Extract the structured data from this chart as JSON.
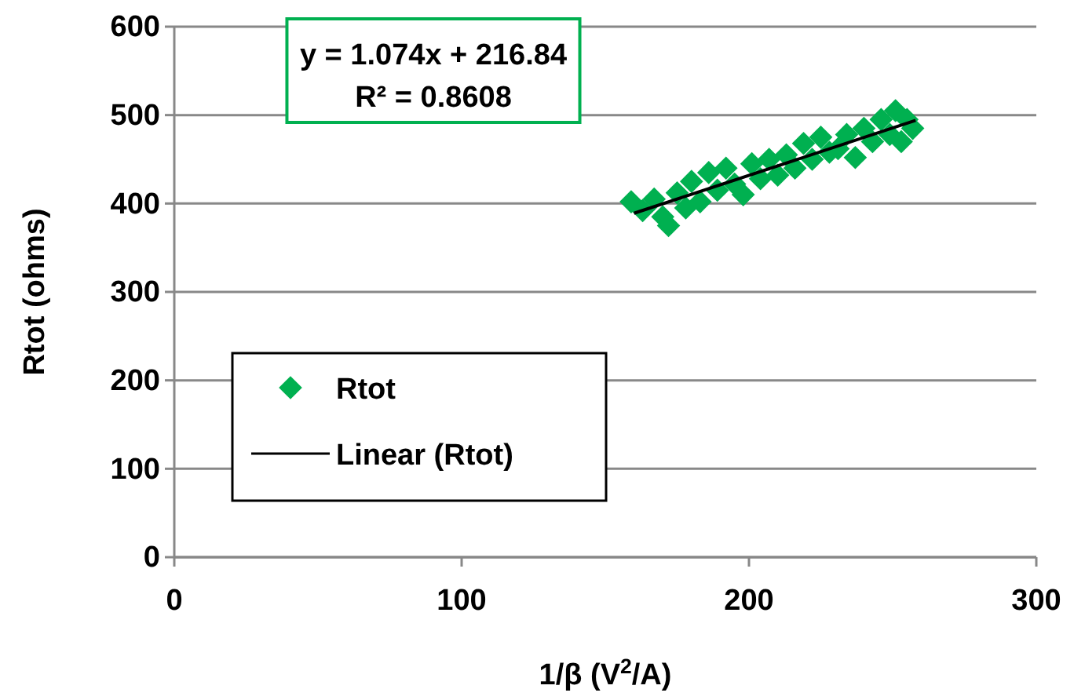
{
  "chart_data": {
    "type": "scatter",
    "xlabel": "1/β (V$^{2}$/A)",
    "ylabel": "Rtot (ohms)",
    "xlim": [
      0,
      300
    ],
    "xticks": [
      0,
      100,
      200,
      300
    ],
    "ylim": [
      0,
      600
    ],
    "yticks": [
      0,
      100,
      200,
      300,
      400,
      500,
      600
    ],
    "grid": "y",
    "legend": "bottom left",
    "marker": "diamond",
    "annotations": [
      "y = 1.074x + 216.84",
      "R² = 0.8608"
    ],
    "series": [
      {
        "name": "Rtot",
        "color": "#00b050",
        "x": [
          159,
          163,
          167,
          170,
          172,
          175,
          178,
          180,
          183,
          186,
          189,
          192,
          195,
          198,
          201,
          204,
          207,
          210,
          213,
          216,
          219,
          222,
          225,
          228,
          231,
          234,
          237,
          240,
          243,
          246,
          249,
          251,
          253,
          255,
          257
        ],
        "values": [
          402,
          392,
          405,
          385,
          375,
          412,
          395,
          425,
          402,
          435,
          415,
          440,
          422,
          410,
          445,
          428,
          450,
          432,
          455,
          440,
          468,
          450,
          475,
          458,
          462,
          478,
          452,
          485,
          470,
          495,
          478,
          505,
          470,
          495,
          485
        ]
      },
      {
        "name": "Linear (Rtot)",
        "type": "line",
        "color": "#000000",
        "marker": "none",
        "x": [
          160,
          258
        ],
        "values": [
          389,
          494
        ]
      }
    ]
  }
}
